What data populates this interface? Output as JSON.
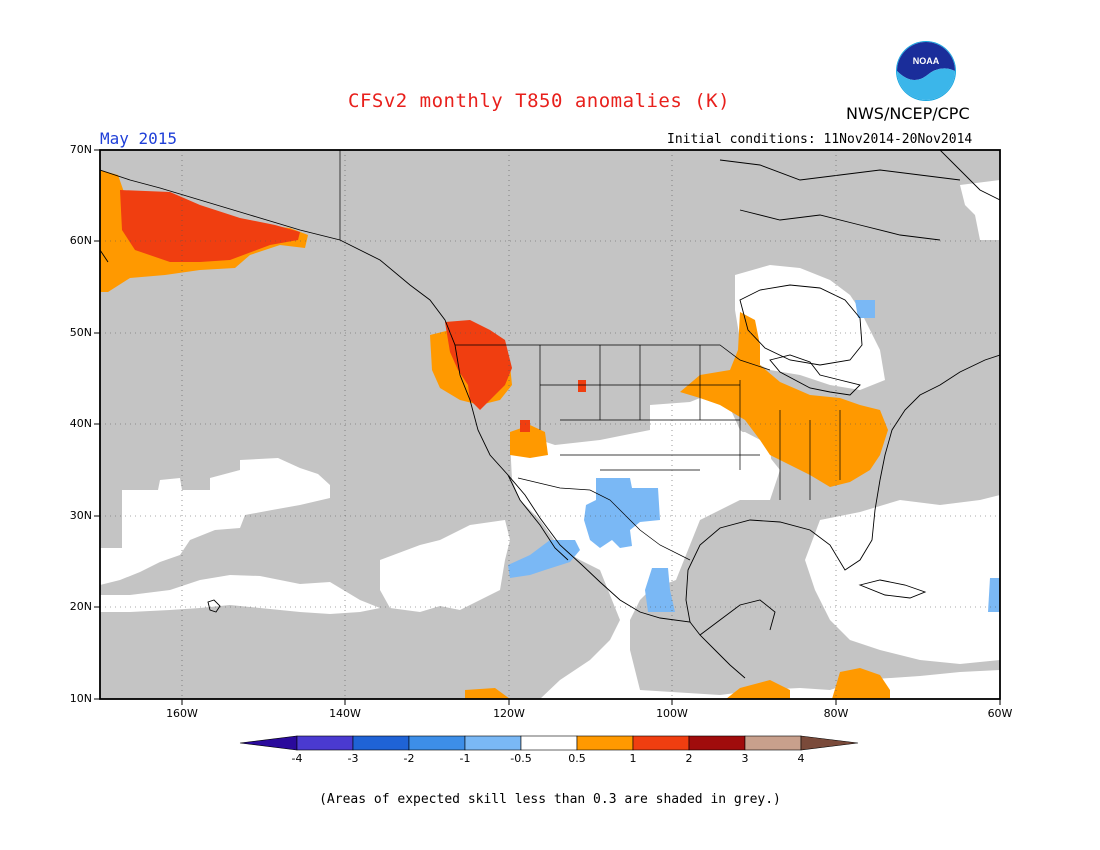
{
  "header": {
    "title": "CFSv2 monthly T850 anomalies (K)",
    "title_color": "#e8201c",
    "agency": "NWS/NCEP/CPC",
    "month": "May 2015",
    "month_color": "#1f3fd8",
    "initial_conditions": "Initial conditions: 11Nov2014-20Nov2014"
  },
  "map": {
    "projection": "lat-lon",
    "lon_range": [
      -170,
      -60
    ],
    "lat_range": [
      10,
      70
    ],
    "lat_ticks": [
      "70N",
      "60N",
      "50N",
      "40N",
      "30N",
      "20N",
      "10N"
    ],
    "lon_ticks": [
      "160W",
      "140W",
      "120W",
      "100W",
      "80W",
      "60W"
    ],
    "grid": "dotted",
    "low_skill_color": "#c4c4c4",
    "regions": [
      {
        "name": "Alaska",
        "anomaly": "0.5 to 2"
      },
      {
        "name": "Pacific Northwest",
        "anomaly": "0.5 to 2"
      },
      {
        "name": "Eastern US / Ohio Valley",
        "anomaly": "0.5 to 1"
      },
      {
        "name": "Southwest US / Northern Mexico",
        "anomaly": "-1 to -0.5"
      },
      {
        "name": "Central Mexico",
        "anomaly": "-1 to -0.5"
      },
      {
        "name": "Central America / Caribbean",
        "anomaly": "0.5 to 1"
      }
    ]
  },
  "colorbar": {
    "labels": [
      "-4",
      "-3",
      "-2",
      "-1",
      "-0.5",
      "0.5",
      "1",
      "2",
      "3",
      "4"
    ],
    "colors": [
      "#2a0a9c",
      "#4a3ad0",
      "#1f63d6",
      "#3d8ee8",
      "#7ab8f5",
      "#ffffff",
      "#ff9900",
      "#f03e10",
      "#a00c0c",
      "#c8a08c",
      "#7a4a3a"
    ]
  },
  "footnote": "(Areas of expected skill less than 0.3 are shaded in grey.)",
  "logo_text": "NOAA"
}
